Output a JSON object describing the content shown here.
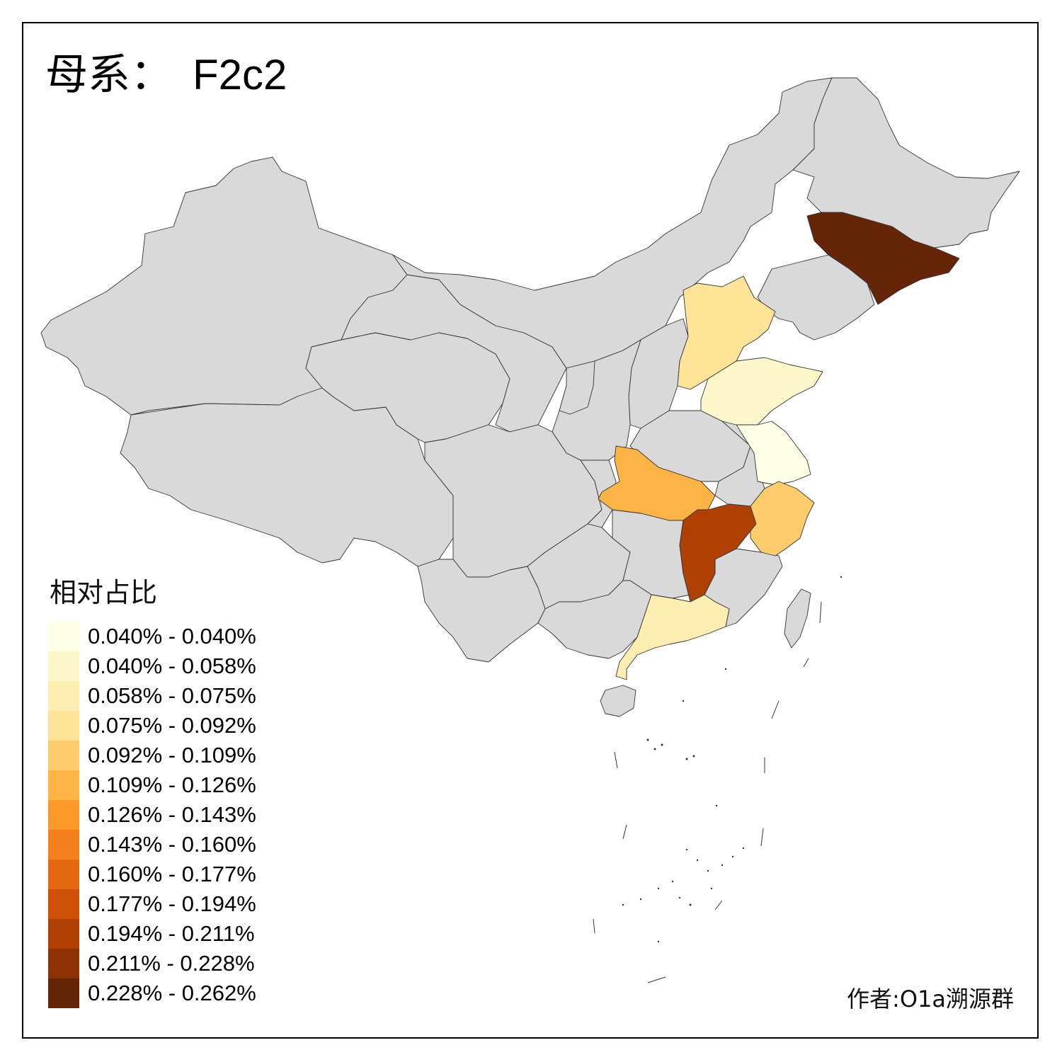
{
  "title": {
    "prefix": "母系：",
    "haplogroup": "F2c2"
  },
  "legend": {
    "title": "相对占比",
    "items": [
      {
        "label": "0.040% - 0.040%",
        "color": "#ffffe5"
      },
      {
        "label": "0.040% - 0.058%",
        "color": "#fff7cc"
      },
      {
        "label": "0.058% - 0.075%",
        "color": "#feeeb2"
      },
      {
        "label": "0.075% - 0.092%",
        "color": "#fee398"
      },
      {
        "label": "0.092% - 0.109%",
        "color": "#fecc6a"
      },
      {
        "label": "0.109% - 0.126%",
        "color": "#feb445"
      },
      {
        "label": "0.126% - 0.143%",
        "color": "#fd9b2a"
      },
      {
        "label": "0.143% - 0.160%",
        "color": "#f4811d"
      },
      {
        "label": "0.160% - 0.177%",
        "color": "#e56812"
      },
      {
        "label": "0.177% - 0.194%",
        "color": "#cf5108"
      },
      {
        "label": "0.194% - 0.211%",
        "color": "#ae4004"
      },
      {
        "label": "0.211% - 0.228%",
        "color": "#8c3104"
      },
      {
        "label": "0.228% - 0.262%",
        "color": "#662506"
      }
    ]
  },
  "no_data_color": "#d9d9d9",
  "highlighted_regions": [
    {
      "id": "jilin",
      "color": "#662506"
    },
    {
      "id": "jiangxi",
      "color": "#ae4004"
    },
    {
      "id": "hubei",
      "color": "#feb445"
    },
    {
      "id": "zhejiang",
      "color": "#fecc6a"
    },
    {
      "id": "hebei",
      "color": "#fee398"
    },
    {
      "id": "guangdong",
      "color": "#feeeb2"
    },
    {
      "id": "shandong",
      "color": "#fff7cc"
    },
    {
      "id": "jiangsu",
      "color": "#ffffe5"
    }
  ],
  "author": "作者:O1a溯源群"
}
